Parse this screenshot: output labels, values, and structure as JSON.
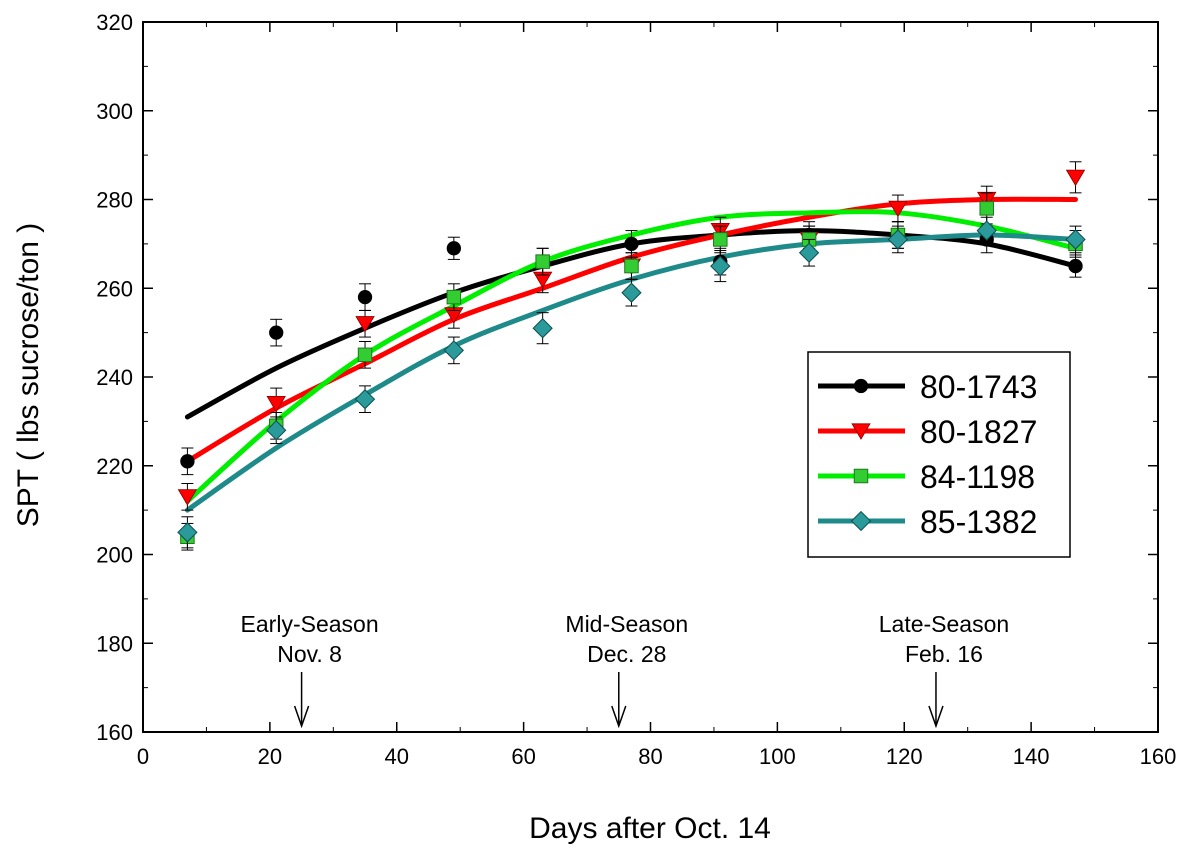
{
  "chart_data": {
    "type": "line",
    "xlabel": "Days after Oct. 14",
    "ylabel": "SPT ( lbs sucrose/ton )",
    "xlim": [
      0,
      160
    ],
    "ylim": [
      160,
      320
    ],
    "xticks": [
      "0",
      "20",
      "40",
      "60",
      "80",
      "100",
      "120",
      "140",
      "160"
    ],
    "yticks": [
      "160",
      "180",
      "200",
      "220",
      "240",
      "260",
      "280",
      "300",
      "320"
    ],
    "grid": false,
    "legend_position": "right",
    "x": [
      7,
      21,
      35,
      49,
      63,
      77,
      91,
      105,
      119,
      133,
      147
    ],
    "series": [
      {
        "name": "80-1743",
        "color": "#000000",
        "marker": "circle",
        "values": [
          221,
          250,
          258,
          269,
          266,
          270,
          266,
          272,
          272,
          271,
          265
        ],
        "errors": [
          3,
          3,
          3,
          2.5,
          3,
          3,
          3,
          3,
          3,
          3,
          2.5
        ],
        "fit": [
          231,
          242,
          251,
          259,
          265,
          270,
          272,
          273,
          272,
          270,
          265
        ]
      },
      {
        "name": "80-1827",
        "color": "#ff0000",
        "marker": "triangle-down",
        "values": [
          213,
          234,
          252,
          254,
          262,
          265,
          273,
          271,
          278,
          280,
          285
        ],
        "errors": [
          3,
          3.5,
          3,
          3,
          3,
          3,
          3,
          3,
          3,
          3,
          3.5
        ],
        "fit": [
          221,
          233,
          243,
          253,
          260,
          267,
          272,
          276,
          279,
          280,
          280
        ]
      },
      {
        "name": "84-1198",
        "color": "#00ee00",
        "markerColor": "#33cc33",
        "marker": "square",
        "values": [
          204,
          229,
          245,
          258,
          266,
          265,
          271,
          271,
          272,
          278,
          270
        ],
        "errors": [
          3,
          3,
          3,
          3,
          3,
          3,
          3,
          3,
          3,
          3.5,
          3
        ],
        "fit": [
          212,
          230,
          245,
          256,
          266,
          272,
          276,
          277,
          277,
          274,
          269
        ]
      },
      {
        "name": "85-1382",
        "color": "#1f8a8a",
        "markerColor": "#2a9a9a",
        "marker": "diamond",
        "values": [
          205,
          228,
          235,
          246,
          251,
          259,
          265,
          268,
          271,
          273,
          271
        ],
        "errors": [
          3.5,
          3,
          3,
          3,
          3.5,
          3,
          3.5,
          3,
          3,
          3,
          3
        ],
        "fit": [
          210,
          224,
          236,
          247,
          255,
          262,
          267,
          270,
          271,
          272,
          271
        ]
      }
    ],
    "annotations": [
      {
        "line1": "Early-Season",
        "line2": "Nov. 8",
        "x": 25
      },
      {
        "line1": "Mid-Season",
        "line2": "Dec. 28",
        "x": 75
      },
      {
        "line1": "Late-Season",
        "line2": "Feb. 16",
        "x": 125
      }
    ]
  }
}
